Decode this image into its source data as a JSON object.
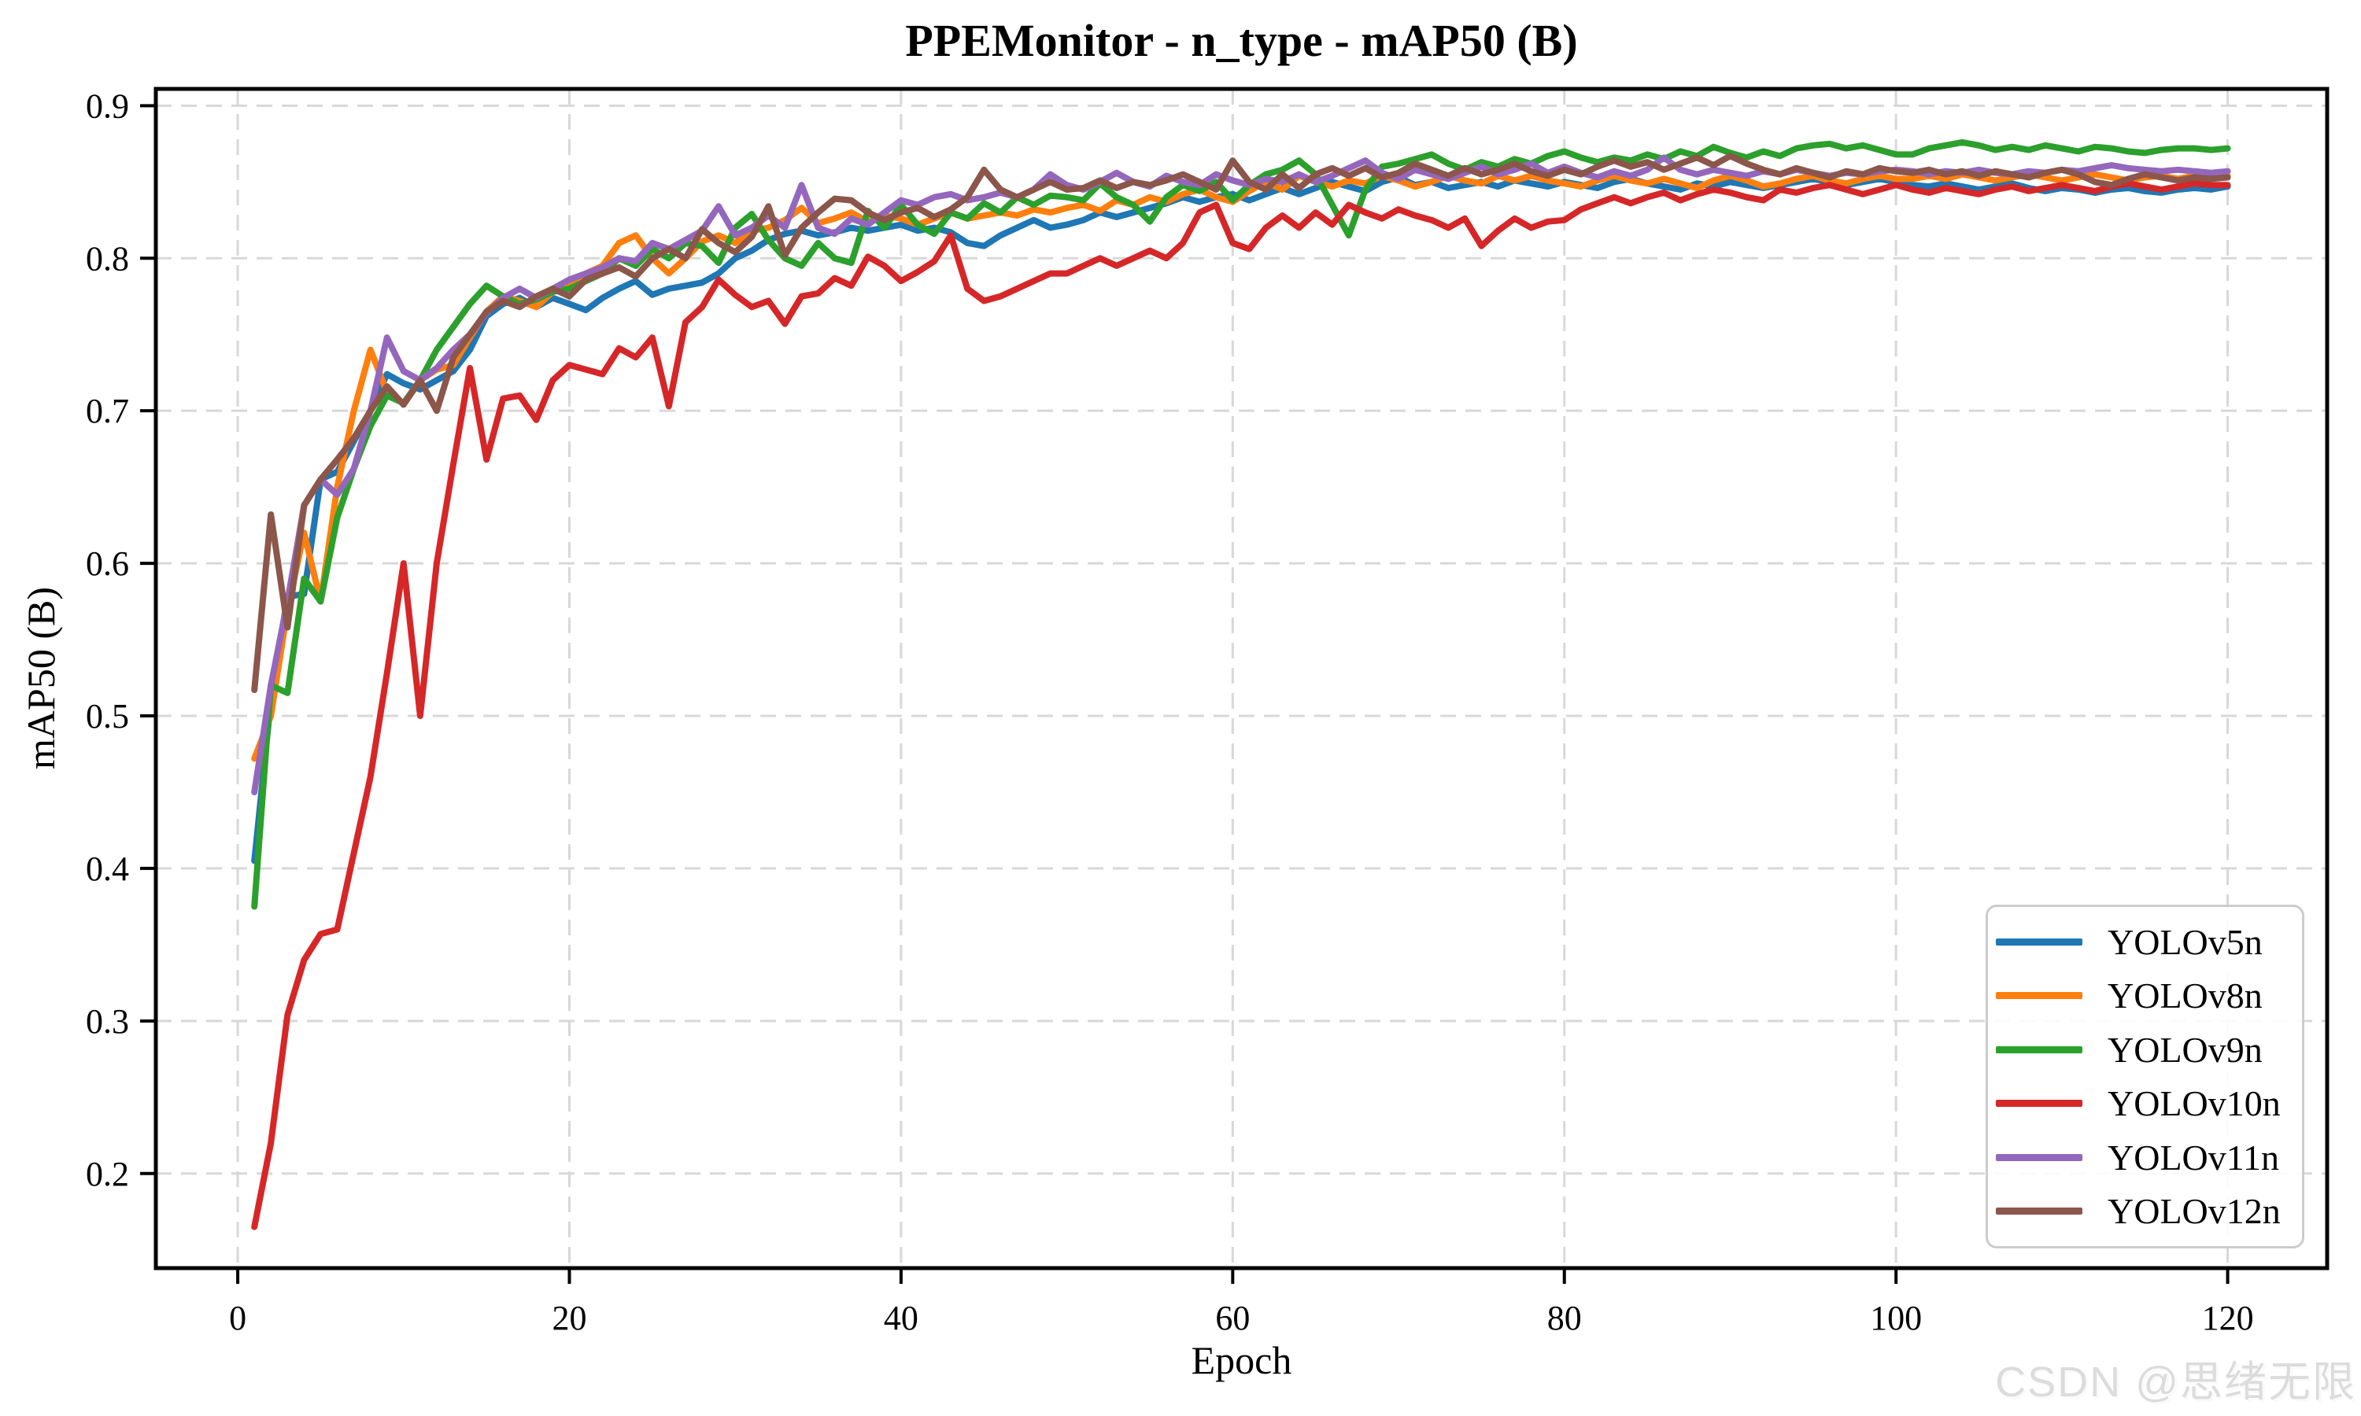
{
  "title": "PPEMonitor - n_type - mAP50 (B)",
  "watermark": "CSDN @思绪无限",
  "axes": {
    "xlabel": "Epoch",
    "ylabel": "mAP50 (B)"
  },
  "style": {
    "grid_color": "#d8d8d8",
    "spine_color": "#000000",
    "legend_border_color": "#cccccc",
    "watermark_color": "#dcdcdc"
  },
  "chart_data": {
    "type": "line",
    "title": "PPEMonitor - n_type - mAP50 (B)",
    "xlabel": "Epoch",
    "ylabel": "mAP50 (B)",
    "xlim": [
      -4.94,
      126.0
    ],
    "ylim": [
      0.138,
      0.911
    ],
    "xticks": [
      0,
      20,
      40,
      60,
      80,
      100,
      120
    ],
    "yticks": [
      0.2,
      0.3,
      0.4,
      0.5,
      0.6,
      0.7,
      0.8,
      0.9
    ],
    "grid": true,
    "grid_style": "dashed",
    "legend_position": "lower right",
    "epoch_start": 1,
    "series": [
      {
        "name": "YOLOv5n",
        "color": "#1f77b4",
        "values": [
          0.405,
          0.51,
          0.578,
          0.58,
          0.655,
          0.66,
          0.68,
          0.7,
          0.724,
          0.718,
          0.714,
          0.72,
          0.726,
          0.74,
          0.762,
          0.77,
          0.774,
          0.768,
          0.774,
          0.77,
          0.766,
          0.774,
          0.78,
          0.785,
          0.776,
          0.78,
          0.782,
          0.784,
          0.79,
          0.8,
          0.805,
          0.812,
          0.816,
          0.818,
          0.815,
          0.817,
          0.82,
          0.818,
          0.82,
          0.822,
          0.818,
          0.82,
          0.817,
          0.81,
          0.808,
          0.815,
          0.82,
          0.825,
          0.82,
          0.822,
          0.825,
          0.83,
          0.827,
          0.83,
          0.833,
          0.836,
          0.84,
          0.837,
          0.84,
          0.842,
          0.838,
          0.842,
          0.846,
          0.842,
          0.846,
          0.85,
          0.847,
          0.844,
          0.85,
          0.853,
          0.848,
          0.85,
          0.846,
          0.848,
          0.85,
          0.847,
          0.851,
          0.849,
          0.847,
          0.85,
          0.848,
          0.846,
          0.85,
          0.852,
          0.849,
          0.847,
          0.845,
          0.849,
          0.847,
          0.85,
          0.848,
          0.846,
          0.848,
          0.85,
          0.852,
          0.85,
          0.848,
          0.85,
          0.852,
          0.85,
          0.848,
          0.847,
          0.849,
          0.847,
          0.845,
          0.847,
          0.849,
          0.846,
          0.844,
          0.846,
          0.845,
          0.843,
          0.845,
          0.846,
          0.844,
          0.843,
          0.845,
          0.846,
          0.845,
          0.847
        ]
      },
      {
        "name": "YOLOv8n",
        "color": "#ff7f0e",
        "values": [
          0.472,
          0.5,
          0.57,
          0.62,
          0.575,
          0.65,
          0.7,
          0.74,
          0.712,
          0.705,
          0.72,
          0.727,
          0.73,
          0.748,
          0.765,
          0.775,
          0.772,
          0.768,
          0.778,
          0.782,
          0.79,
          0.795,
          0.81,
          0.815,
          0.8,
          0.79,
          0.8,
          0.811,
          0.815,
          0.81,
          0.818,
          0.82,
          0.825,
          0.833,
          0.823,
          0.826,
          0.83,
          0.824,
          0.828,
          0.826,
          0.822,
          0.826,
          0.83,
          0.826,
          0.828,
          0.83,
          0.828,
          0.832,
          0.83,
          0.833,
          0.835,
          0.831,
          0.838,
          0.835,
          0.84,
          0.837,
          0.842,
          0.845,
          0.84,
          0.837,
          0.844,
          0.85,
          0.845,
          0.854,
          0.85,
          0.847,
          0.851,
          0.849,
          0.854,
          0.851,
          0.847,
          0.85,
          0.854,
          0.851,
          0.849,
          0.854,
          0.851,
          0.854,
          0.851,
          0.849,
          0.847,
          0.851,
          0.854,
          0.851,
          0.849,
          0.852,
          0.849,
          0.846,
          0.851,
          0.854,
          0.851,
          0.847,
          0.849,
          0.852,
          0.854,
          0.851,
          0.849,
          0.852,
          0.854,
          0.852,
          0.852,
          0.854,
          0.852,
          0.855,
          0.853,
          0.851,
          0.853,
          0.855,
          0.853,
          0.851,
          0.853,
          0.855,
          0.853,
          0.851,
          0.853,
          0.854,
          0.852,
          0.854,
          0.853,
          0.854
        ]
      },
      {
        "name": "YOLOv9n",
        "color": "#2ca02c",
        "values": [
          0.375,
          0.52,
          0.515,
          0.59,
          0.575,
          0.63,
          0.662,
          0.69,
          0.71,
          0.705,
          0.72,
          0.74,
          0.755,
          0.77,
          0.782,
          0.775,
          0.77,
          0.773,
          0.778,
          0.78,
          0.785,
          0.79,
          0.8,
          0.795,
          0.806,
          0.8,
          0.81,
          0.808,
          0.797,
          0.82,
          0.829,
          0.812,
          0.8,
          0.795,
          0.81,
          0.8,
          0.797,
          0.831,
          0.82,
          0.835,
          0.822,
          0.816,
          0.83,
          0.826,
          0.836,
          0.83,
          0.84,
          0.835,
          0.841,
          0.84,
          0.838,
          0.849,
          0.84,
          0.835,
          0.824,
          0.84,
          0.848,
          0.844,
          0.85,
          0.838,
          0.848,
          0.855,
          0.858,
          0.864,
          0.855,
          0.835,
          0.815,
          0.845,
          0.86,
          0.862,
          0.865,
          0.868,
          0.862,
          0.858,
          0.863,
          0.86,
          0.865,
          0.862,
          0.867,
          0.87,
          0.866,
          0.863,
          0.866,
          0.864,
          0.868,
          0.865,
          0.87,
          0.867,
          0.873,
          0.869,
          0.866,
          0.87,
          0.867,
          0.872,
          0.874,
          0.875,
          0.872,
          0.874,
          0.871,
          0.868,
          0.868,
          0.872,
          0.874,
          0.876,
          0.874,
          0.871,
          0.873,
          0.871,
          0.874,
          0.872,
          0.87,
          0.873,
          0.872,
          0.87,
          0.869,
          0.871,
          0.872,
          0.872,
          0.871,
          0.872
        ]
      },
      {
        "name": "YOLOv10n",
        "color": "#d62728",
        "values": [
          0.165,
          0.22,
          0.304,
          0.34,
          0.357,
          0.36,
          0.41,
          0.46,
          0.528,
          0.6,
          0.5,
          0.6,
          0.665,
          0.728,
          0.668,
          0.708,
          0.71,
          0.694,
          0.72,
          0.73,
          0.727,
          0.724,
          0.741,
          0.735,
          0.748,
          0.703,
          0.758,
          0.768,
          0.786,
          0.776,
          0.768,
          0.772,
          0.757,
          0.775,
          0.777,
          0.787,
          0.782,
          0.801,
          0.795,
          0.785,
          0.791,
          0.798,
          0.815,
          0.78,
          0.772,
          0.775,
          0.78,
          0.785,
          0.79,
          0.79,
          0.795,
          0.8,
          0.795,
          0.8,
          0.805,
          0.8,
          0.81,
          0.83,
          0.835,
          0.81,
          0.806,
          0.82,
          0.828,
          0.82,
          0.83,
          0.822,
          0.835,
          0.83,
          0.826,
          0.832,
          0.828,
          0.825,
          0.82,
          0.826,
          0.808,
          0.818,
          0.826,
          0.82,
          0.824,
          0.825,
          0.832,
          0.836,
          0.84,
          0.836,
          0.84,
          0.843,
          0.838,
          0.842,
          0.845,
          0.843,
          0.84,
          0.838,
          0.845,
          0.843,
          0.846,
          0.848,
          0.845,
          0.842,
          0.845,
          0.848,
          0.845,
          0.843,
          0.846,
          0.844,
          0.842,
          0.845,
          0.847,
          0.844,
          0.846,
          0.848,
          0.846,
          0.844,
          0.847,
          0.849,
          0.847,
          0.845,
          0.847,
          0.849,
          0.848,
          0.848
        ]
      },
      {
        "name": "YOLOv11n",
        "color": "#9467bd",
        "values": [
          0.45,
          0.52,
          0.575,
          0.638,
          0.655,
          0.645,
          0.662,
          0.7,
          0.748,
          0.726,
          0.72,
          0.728,
          0.74,
          0.75,
          0.764,
          0.774,
          0.78,
          0.774,
          0.78,
          0.786,
          0.79,
          0.794,
          0.8,
          0.798,
          0.81,
          0.806,
          0.812,
          0.818,
          0.834,
          0.815,
          0.82,
          0.828,
          0.82,
          0.848,
          0.82,
          0.816,
          0.826,
          0.822,
          0.83,
          0.838,
          0.835,
          0.84,
          0.842,
          0.838,
          0.84,
          0.843,
          0.84,
          0.845,
          0.855,
          0.848,
          0.845,
          0.85,
          0.856,
          0.85,
          0.847,
          0.854,
          0.85,
          0.848,
          0.855,
          0.851,
          0.848,
          0.852,
          0.85,
          0.855,
          0.85,
          0.854,
          0.859,
          0.864,
          0.856,
          0.852,
          0.858,
          0.855,
          0.852,
          0.856,
          0.86,
          0.855,
          0.858,
          0.862,
          0.856,
          0.86,
          0.856,
          0.853,
          0.857,
          0.854,
          0.858,
          0.866,
          0.858,
          0.855,
          0.858,
          0.856,
          0.854,
          0.857,
          0.855,
          0.858,
          0.856,
          0.854,
          0.856,
          0.855,
          0.857,
          0.858,
          0.857,
          0.855,
          0.857,
          0.856,
          0.858,
          0.856,
          0.855,
          0.857,
          0.856,
          0.858,
          0.857,
          0.859,
          0.861,
          0.859,
          0.858,
          0.857,
          0.858,
          0.857,
          0.856,
          0.857
        ]
      },
      {
        "name": "YOLOv12n",
        "color": "#8c564b",
        "values": [
          0.517,
          0.632,
          0.558,
          0.638,
          0.655,
          0.668,
          0.682,
          0.7,
          0.716,
          0.704,
          0.72,
          0.7,
          0.735,
          0.75,
          0.765,
          0.772,
          0.768,
          0.775,
          0.78,
          0.775,
          0.786,
          0.79,
          0.794,
          0.788,
          0.8,
          0.806,
          0.8,
          0.819,
          0.81,
          0.804,
          0.814,
          0.834,
          0.802,
          0.82,
          0.83,
          0.839,
          0.838,
          0.83,
          0.825,
          0.83,
          0.833,
          0.827,
          0.832,
          0.84,
          0.858,
          0.845,
          0.84,
          0.845,
          0.85,
          0.845,
          0.846,
          0.851,
          0.846,
          0.85,
          0.848,
          0.851,
          0.855,
          0.85,
          0.845,
          0.864,
          0.85,
          0.845,
          0.855,
          0.846,
          0.855,
          0.859,
          0.854,
          0.859,
          0.853,
          0.856,
          0.862,
          0.858,
          0.854,
          0.859,
          0.855,
          0.858,
          0.862,
          0.857,
          0.854,
          0.858,
          0.855,
          0.86,
          0.864,
          0.86,
          0.863,
          0.858,
          0.862,
          0.866,
          0.861,
          0.867,
          0.862,
          0.858,
          0.855,
          0.859,
          0.856,
          0.853,
          0.857,
          0.855,
          0.859,
          0.857,
          0.856,
          0.858,
          0.855,
          0.857,
          0.854,
          0.857,
          0.855,
          0.853,
          0.856,
          0.858,
          0.855,
          0.85,
          0.848,
          0.852,
          0.855,
          0.853,
          0.851,
          0.853,
          0.852,
          0.853
        ]
      }
    ]
  }
}
